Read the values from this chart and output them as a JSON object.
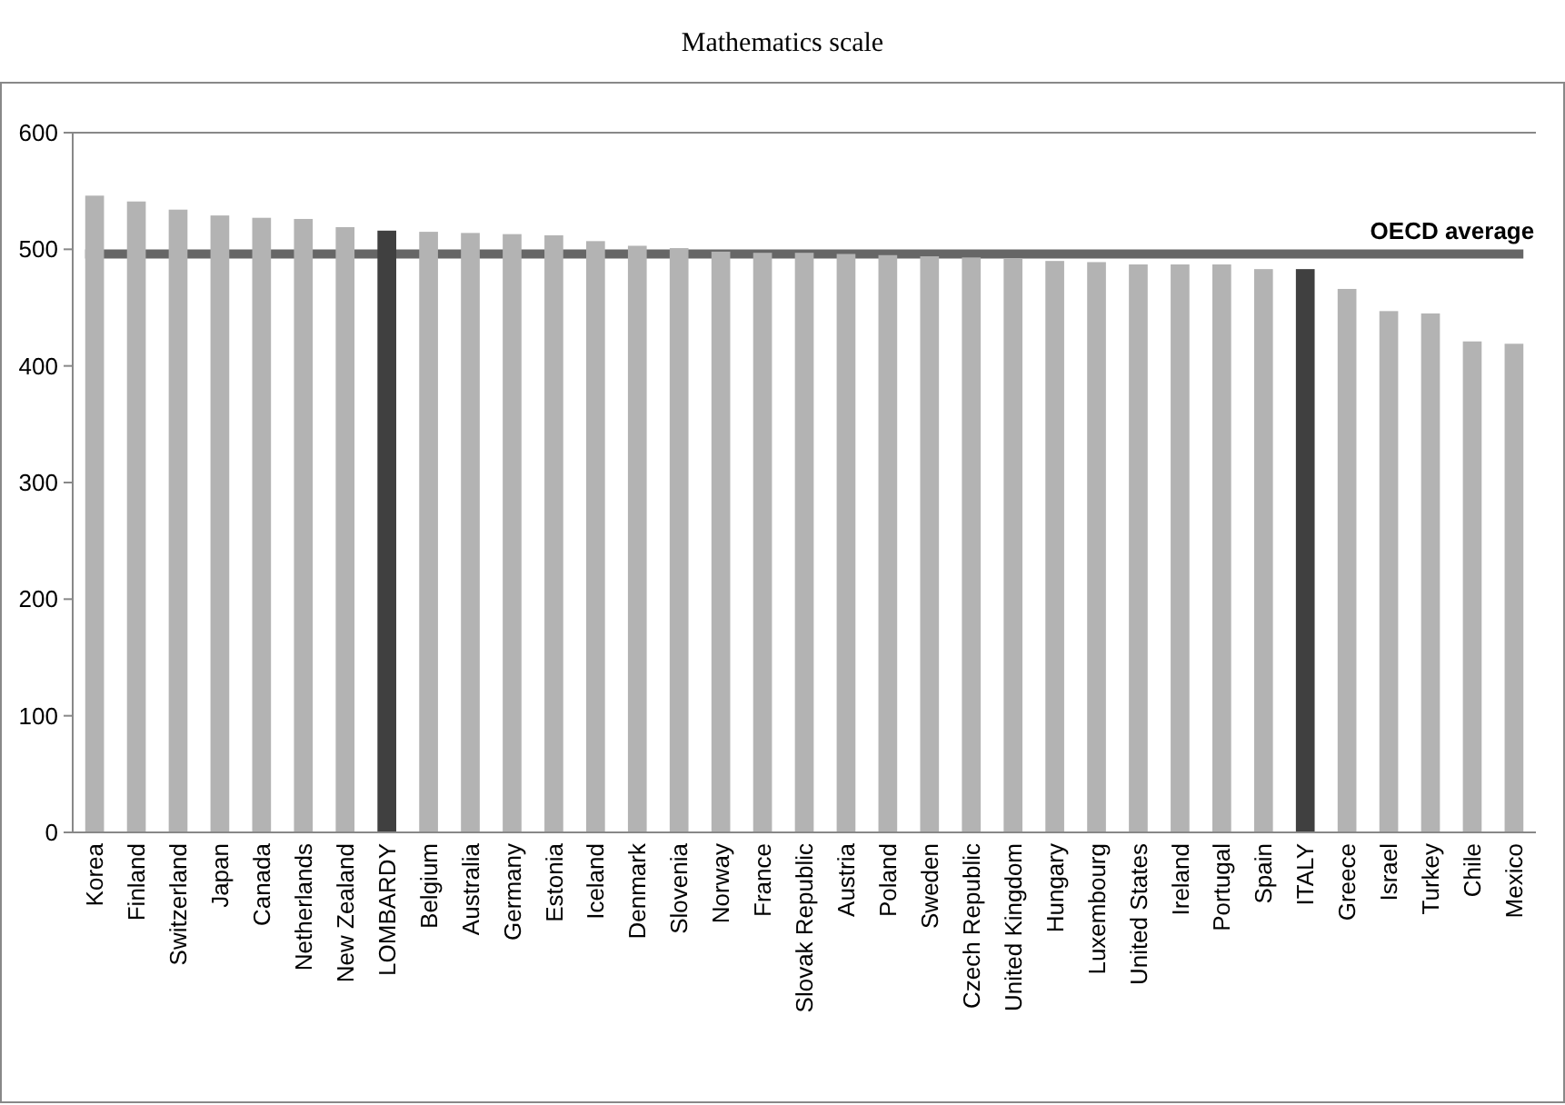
{
  "chart_data": {
    "type": "bar",
    "title": "Mathematics scale",
    "categories": [
      "Korea",
      "Finland",
      "Switzerland",
      "Japan",
      "Canada",
      "Netherlands",
      "New Zealand",
      "LOMBARDY",
      "Belgium",
      "Australia",
      "Germany",
      "Estonia",
      "Iceland",
      "Denmark",
      "Slovenia",
      "Norway",
      "France",
      "Slovak Republic",
      "Austria",
      "Poland",
      "Sweden",
      "Czech Republic",
      "United Kingdom",
      "Hungary",
      "Luxembourg",
      "United States",
      "Ireland",
      "Portugal",
      "Spain",
      "ITALY",
      "Greece",
      "Israel",
      "Turkey",
      "Chile",
      "Mexico"
    ],
    "values": [
      546,
      541,
      534,
      529,
      527,
      526,
      519,
      516,
      515,
      514,
      513,
      512,
      507,
      503,
      501,
      498,
      497,
      497,
      496,
      495,
      494,
      493,
      492,
      490,
      489,
      487,
      487,
      487,
      483,
      483,
      466,
      447,
      445,
      421,
      419
    ],
    "colors": [
      "#b3b3b3",
      "#b3b3b3",
      "#b3b3b3",
      "#b3b3b3",
      "#b3b3b3",
      "#b3b3b3",
      "#b3b3b3",
      "#404040",
      "#b3b3b3",
      "#b3b3b3",
      "#b3b3b3",
      "#b3b3b3",
      "#b3b3b3",
      "#b3b3b3",
      "#b3b3b3",
      "#b3b3b3",
      "#b3b3b3",
      "#b3b3b3",
      "#b3b3b3",
      "#b3b3b3",
      "#b3b3b3",
      "#b3b3b3",
      "#b3b3b3",
      "#b3b3b3",
      "#b3b3b3",
      "#b3b3b3",
      "#b3b3b3",
      "#b3b3b3",
      "#b3b3b3",
      "#404040",
      "#b3b3b3",
      "#b3b3b3",
      "#b3b3b3",
      "#b3b3b3",
      "#b3b3b3"
    ],
    "ylim": [
      0,
      600
    ],
    "yticks": [
      0,
      100,
      200,
      300,
      400,
      500,
      600
    ],
    "grid": false,
    "ref_lines": [
      {
        "axis": "y",
        "value": 496,
        "label": "OECD average",
        "color": "#666666"
      }
    ]
  }
}
